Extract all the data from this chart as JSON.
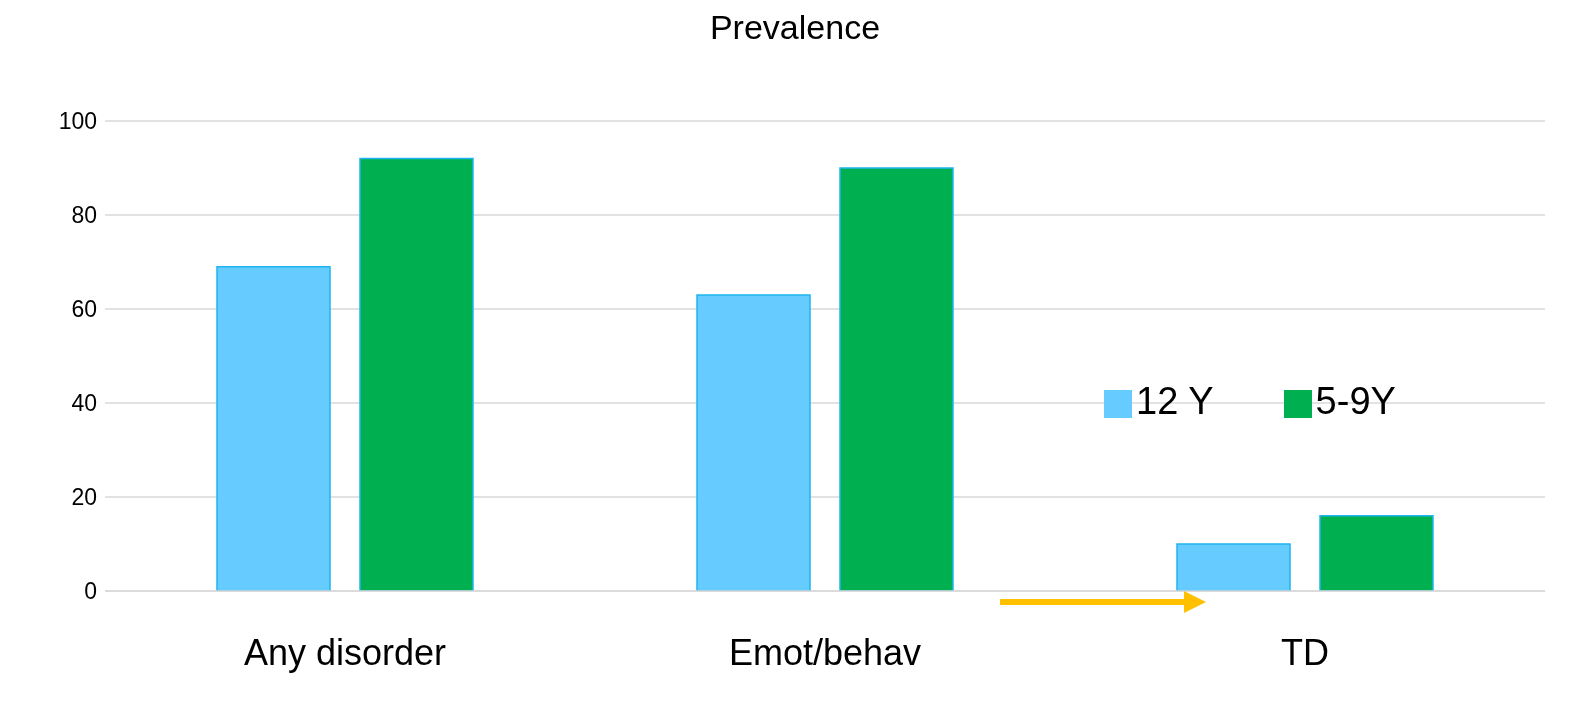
{
  "chart_data": {
    "type": "bar",
    "title": "Prevalence",
    "categories": [
      "Any disorder",
      "Emot/behav",
      "TD"
    ],
    "series": [
      {
        "name": "12 Y",
        "color": "#66ccff",
        "values": [
          69,
          63,
          10
        ]
      },
      {
        "name": "5-9Y",
        "color": "#00b050",
        "values": [
          92,
          90,
          16
        ]
      }
    ],
    "ylim": [
      0,
      100
    ],
    "yticks": [
      0,
      20,
      40,
      60,
      80,
      100
    ],
    "grid": "y",
    "legend": "right"
  }
}
